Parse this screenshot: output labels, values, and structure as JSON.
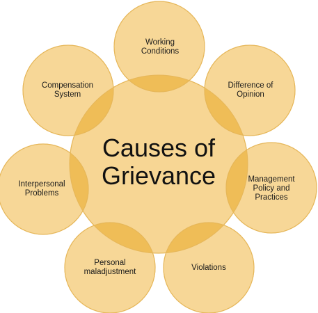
{
  "diagram": {
    "center": "Causes of\nGrievance",
    "causes": [
      "Working\nConditions",
      "Difference of\nOpinion",
      "Management\nPolicy and\nPractices",
      "Violations",
      "Personal\nmaladjustment",
      "Interpersonal\nProblems",
      "Compensation\nSystem"
    ]
  },
  "colors": {
    "circle_fill": "#F7D38C",
    "circle_stroke": "#E6B75A",
    "overlap_fill": "#EDB84E"
  }
}
